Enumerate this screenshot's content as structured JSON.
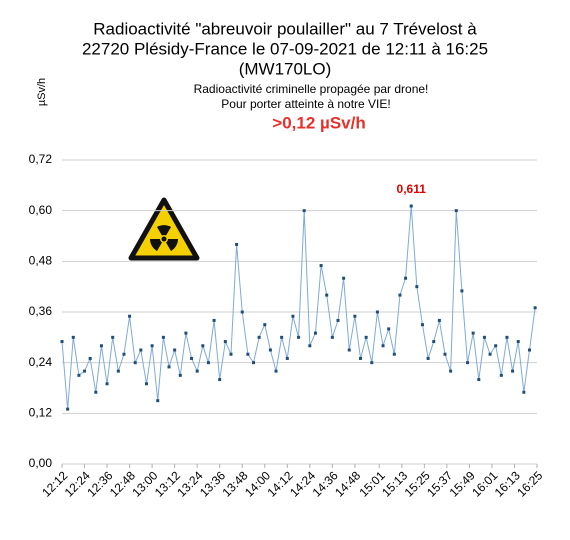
{
  "chart_data": {
    "type": "line",
    "title": [
      "Radioactivité \"abreuvoir poulailler\" au 7 Trévelost à",
      "22720 Plésidy-France le 07-09-2021 de 12:11 à 16:25",
      "(MW170LO)"
    ],
    "subtitle": [
      "Radioactivité criminelle propagée par drone!",
      "Pour porter atteinte à notre VIE!"
    ],
    "highlight": ">0,12 µSv/h",
    "y_label": "µSv/h",
    "color": "#7eaad8",
    "marker_color": "#1f4e79",
    "label_color": "#e00000",
    "grid": true,
    "x": [
      732,
      735,
      738,
      741,
      744,
      747,
      750,
      753,
      756,
      759,
      762,
      765,
      768,
      771,
      774,
      777,
      780,
      783,
      786,
      789,
      792,
      795,
      798,
      801,
      804,
      807,
      810,
      813,
      816,
      819,
      822,
      825,
      828,
      831,
      834,
      837,
      840,
      843,
      846,
      849,
      852,
      855,
      858,
      861,
      864,
      867,
      870,
      873,
      876,
      879,
      882,
      885,
      888,
      891,
      894,
      897,
      900,
      903,
      906,
      909,
      912,
      915,
      918,
      921,
      924,
      927,
      930,
      933,
      936,
      939,
      942,
      945,
      948,
      951,
      954,
      957,
      960,
      963,
      966,
      969,
      972,
      975,
      978,
      981,
      984
    ],
    "values": [
      0.29,
      0.13,
      0.3,
      0.21,
      0.22,
      0.25,
      0.17,
      0.28,
      0.19,
      0.3,
      0.22,
      0.26,
      0.35,
      0.24,
      0.27,
      0.19,
      0.28,
      0.15,
      0.3,
      0.23,
      0.27,
      0.21,
      0.31,
      0.25,
      0.22,
      0.28,
      0.24,
      0.34,
      0.2,
      0.29,
      0.26,
      0.52,
      0.36,
      0.26,
      0.24,
      0.3,
      0.33,
      0.27,
      0.22,
      0.3,
      0.25,
      0.35,
      0.3,
      0.6,
      0.28,
      0.31,
      0.47,
      0.4,
      0.3,
      0.34,
      0.44,
      0.27,
      0.35,
      0.25,
      0.3,
      0.24,
      0.36,
      0.28,
      0.32,
      0.26,
      0.4,
      0.44,
      0.611,
      0.42,
      0.33,
      0.25,
      0.29,
      0.34,
      0.26,
      0.22,
      0.6,
      0.41,
      0.24,
      0.31,
      0.2,
      0.3,
      0.26,
      0.28,
      0.21,
      0.3,
      0.22,
      0.29,
      0.17,
      0.27,
      0.37
    ],
    "value_labels": [
      null,
      null,
      null,
      null,
      null,
      null,
      null,
      null,
      null,
      null,
      null,
      null,
      null,
      null,
      null,
      null,
      null,
      null,
      null,
      null,
      null,
      null,
      null,
      null,
      null,
      null,
      null,
      null,
      null,
      null,
      null,
      null,
      null,
      null,
      null,
      null,
      null,
      null,
      null,
      null,
      null,
      null,
      null,
      null,
      null,
      null,
      null,
      null,
      null,
      null,
      null,
      null,
      null,
      null,
      null,
      null,
      null,
      null,
      null,
      null,
      null,
      null,
      "0,611",
      null,
      null,
      null,
      null,
      null,
      null,
      null,
      null,
      null,
      null,
      null,
      null,
      null,
      null,
      null,
      null,
      null,
      null,
      null,
      null,
      null,
      null
    ],
    "xlim": [
      732,
      985
    ],
    "xticks": [
      {
        "value": 732,
        "label": "12:12"
      },
      {
        "value": 744,
        "label": "12:24"
      },
      {
        "value": 756,
        "label": "12:36"
      },
      {
        "value": 768,
        "label": "12:48"
      },
      {
        "value": 780,
        "label": "13:00"
      },
      {
        "value": 792,
        "label": "13:12"
      },
      {
        "value": 804,
        "label": "13:24"
      },
      {
        "value": 816,
        "label": "13:36"
      },
      {
        "value": 828,
        "label": "13:48"
      },
      {
        "value": 840,
        "label": "14:00"
      },
      {
        "value": 852,
        "label": "14:12"
      },
      {
        "value": 864,
        "label": "14:24"
      },
      {
        "value": 876,
        "label": "14:36"
      },
      {
        "value": 888,
        "label": "14:48"
      },
      {
        "value": 901,
        "label": "15:01"
      },
      {
        "value": 913,
        "label": "15:13"
      },
      {
        "value": 925,
        "label": "15:25"
      },
      {
        "value": 937,
        "label": "15:37"
      },
      {
        "value": 949,
        "label": "15:49"
      },
      {
        "value": 961,
        "label": "16:01"
      },
      {
        "value": 973,
        "label": "16:13"
      },
      {
        "value": 985,
        "label": "16:25"
      }
    ],
    "ylim": [
      0,
      0.72
    ],
    "yticks": [
      {
        "value": 0,
        "label": "0,00"
      },
      {
        "value": 0.12,
        "label": "0,12"
      },
      {
        "value": 0.24,
        "label": "0,24"
      },
      {
        "value": 0.36,
        "label": "0,36"
      },
      {
        "value": 0.48,
        "label": "0,48"
      },
      {
        "value": 0.6,
        "label": "0,60"
      },
      {
        "value": 0.72,
        "label": "0,72"
      }
    ]
  }
}
